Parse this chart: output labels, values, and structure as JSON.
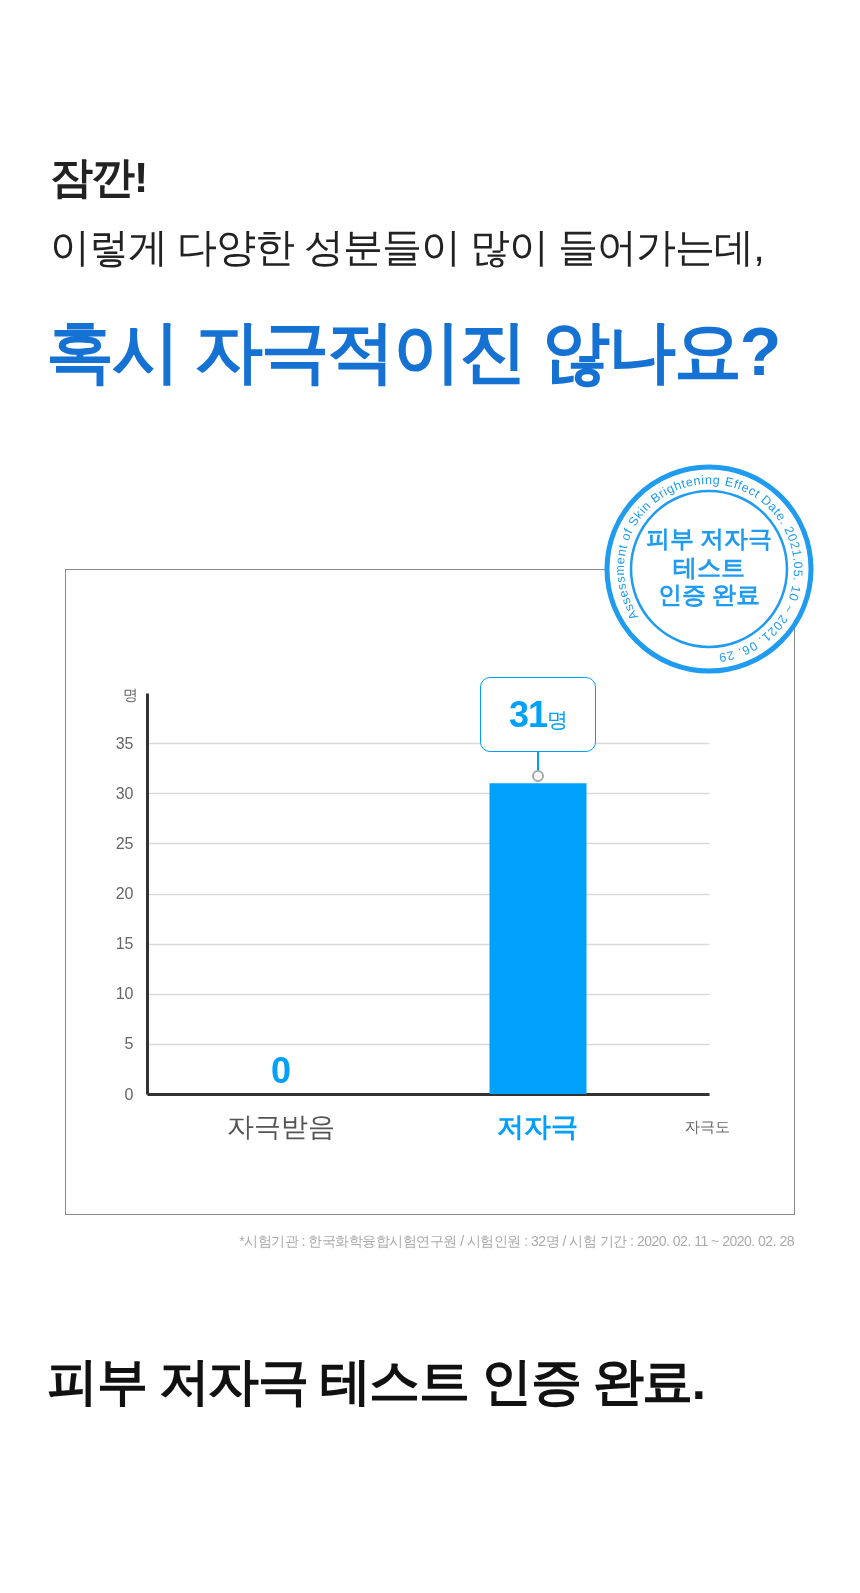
{
  "chart_data": {
    "type": "bar",
    "title": "혹시 자극적이진 않나요?",
    "subtitle": "이렇게 다양한 성분들이 많이 들어가는데,",
    "categories": [
      "자극받음",
      "저자극"
    ],
    "values": [
      0,
      31
    ],
    "color": "#01a0fb",
    "value_labels": [
      "0",
      "31명"
    ],
    "xlabel": "자극도",
    "ylabel": "명",
    "ylim": [
      0,
      40
    ],
    "yticks": [
      0,
      5,
      10,
      15,
      20,
      25,
      30,
      35
    ],
    "grid": "y",
    "annotations": [
      "잠깐!",
      "피부 저자극 테스트 인증 완료.",
      "*시험기관 : 한국화학융합시험연구원 / 시험인원 : 32명 / 시험 기간 : 2020. 02. 11 ~ 2020. 02. 28",
      "Assessment of Skin Brightening Effect Date. 2021.05. 10 ~ 2021. 06. 29",
      "피부 저자극",
      "테스트",
      "인증 완료"
    ]
  }
}
